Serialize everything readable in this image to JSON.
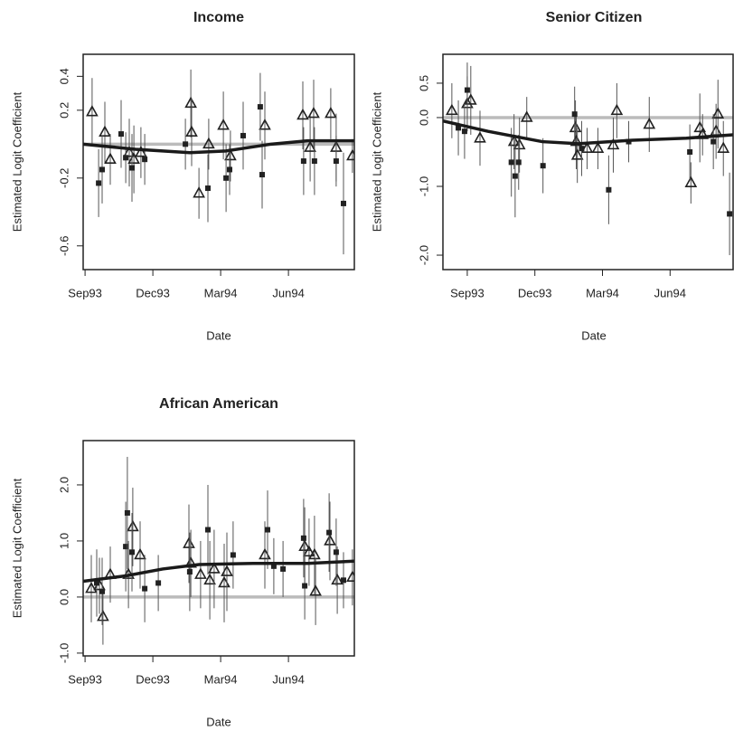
{
  "chart_data": [
    {
      "type": "scatter",
      "title": "Income",
      "xlabel": "Date",
      "ylabel": "Estimated Logit Coefficient",
      "xlim": [
        1993.66,
        1994.66
      ],
      "ylim": [
        -0.74,
        0.53
      ],
      "xticks": [
        {
          "value": 1993.667,
          "label": "Sep93"
        },
        {
          "value": 1993.917,
          "label": "Dec93"
        },
        {
          "value": 1994.167,
          "label": "Mar94"
        },
        {
          "value": 1994.417,
          "label": "Jun94"
        }
      ],
      "yticks": [
        0.4,
        0.2,
        -0.2,
        -0.6
      ],
      "reference_line": 0,
      "reference_color": "#bbbbbb",
      "series": [
        {
          "marker": "triangle",
          "color": "#222222",
          "x": [
            1993.693,
            1993.74,
            1993.76,
            1993.83,
            1993.847,
            1993.873,
            1994.057,
            1994.06,
            1994.087,
            1994.123,
            1994.177,
            1994.203,
            1994.33,
            1994.47,
            1994.497,
            1994.51,
            1994.573,
            1994.593,
            1994.653
          ],
          "values": [
            0.19,
            0.07,
            -0.09,
            -0.05,
            -0.09,
            -0.05,
            0.24,
            0.07,
            -0.29,
            0.0,
            0.11,
            -0.07,
            0.11,
            0.17,
            -0.02,
            0.18,
            0.18,
            -0.02,
            -0.07
          ],
          "errors": [
            0.2,
            0.18,
            0.15,
            0.2,
            0.2,
            0.15,
            0.2,
            0.2,
            0.15,
            0.15,
            0.2,
            0.15,
            0.2,
            0.2,
            0.2,
            0.2,
            0.15,
            0.2,
            0.1
          ]
        },
        {
          "marker": "square",
          "color": "#222222",
          "x": [
            1993.717,
            1993.73,
            1993.8,
            1993.817,
            1993.84,
            1993.887,
            1994.037,
            1994.12,
            1994.187,
            1994.2,
            1994.25,
            1994.32,
            1994.313,
            1994.473,
            1994.513,
            1994.593,
            1994.62
          ],
          "values": [
            -0.23,
            -0.15,
            0.06,
            -0.08,
            -0.14,
            -0.09,
            0.0,
            -0.26,
            -0.2,
            -0.15,
            0.05,
            -0.18,
            0.22,
            -0.1,
            -0.1,
            -0.1,
            -0.35
          ],
          "errors": [
            0.2,
            0.2,
            0.2,
            0.15,
            0.2,
            0.15,
            0.15,
            0.2,
            0.2,
            0.15,
            0.2,
            0.2,
            0.2,
            0.2,
            0.2,
            0.15,
            0.3
          ]
        },
        {
          "marker": "line",
          "color": "#1a1a1a",
          "x": [
            1993.66,
            1993.853,
            1994.053,
            1994.187,
            1994.353,
            1994.487,
            1994.66
          ],
          "values": [
            0.0,
            -0.03,
            -0.05,
            -0.04,
            0.0,
            0.02,
            0.02
          ]
        }
      ]
    },
    {
      "type": "scatter",
      "title": "Senior Citizen",
      "xlabel": "Date",
      "ylabel": "Estimated Logit Coefficient",
      "xlim": [
        1993.577,
        1994.65
      ],
      "ylim": [
        -2.21,
        0.92
      ],
      "xticks": [
        {
          "value": 1993.667,
          "label": "Sep93"
        },
        {
          "value": 1993.917,
          "label": "Dec93"
        },
        {
          "value": 1994.167,
          "label": "Mar94"
        },
        {
          "value": 1994.417,
          "label": "Jun94"
        }
      ],
      "yticks": [
        0.5,
        {
          "value": 0,
          "label": "0.0"
        },
        {
          "value": -1,
          "label": "-1.0"
        },
        {
          "value": -2,
          "label": "-2.0"
        }
      ],
      "reference_line": 0,
      "reference_color": "#bbbbbb",
      "series": [
        {
          "marker": "triangle",
          "color": "#222222",
          "x": [
            1993.61,
            1993.667,
            1993.68,
            1993.714,
            1993.84,
            1993.86,
            1993.887,
            1994.067,
            1994.07,
            1994.074,
            1994.11,
            1994.15,
            1994.207,
            1994.22,
            1994.34,
            1994.494,
            1994.527,
            1994.537,
            1994.587,
            1994.594,
            1994.614
          ],
          "values": [
            0.1,
            0.2,
            0.25,
            -0.3,
            -0.35,
            -0.4,
            0.0,
            -0.15,
            -0.35,
            -0.55,
            -0.45,
            -0.45,
            -0.4,
            0.1,
            -0.1,
            -0.95,
            -0.15,
            -0.25,
            -0.2,
            0.05,
            -0.45
          ],
          "errors": [
            0.4,
            0.4,
            0.5,
            0.4,
            0.4,
            0.4,
            0.3,
            0.4,
            0.4,
            0.4,
            0.3,
            0.3,
            0.4,
            0.4,
            0.4,
            0.3,
            0.5,
            0.3,
            0.4,
            0.5,
            0.4
          ]
        },
        {
          "marker": "square",
          "color": "#222222",
          "x": [
            1993.634,
            1993.657,
            1993.667,
            1993.83,
            1993.844,
            1993.857,
            1993.947,
            1994.064,
            1994.09,
            1994.19,
            1994.264,
            1994.49,
            1994.577,
            1994.637
          ],
          "values": [
            -0.15,
            -0.2,
            0.4,
            -0.65,
            -0.85,
            -0.65,
            -0.7,
            0.05,
            -0.45,
            -1.05,
            -0.35,
            -0.5,
            -0.35,
            -1.4
          ],
          "errors": [
            0.4,
            0.4,
            0.4,
            0.5,
            0.6,
            0.4,
            0.4,
            0.4,
            0.4,
            0.5,
            0.3,
            0.4,
            0.4,
            0.6
          ]
        },
        {
          "marker": "line",
          "color": "#1a1a1a",
          "x": [
            1993.577,
            1993.744,
            1993.944,
            1994.077,
            1994.277,
            1994.477,
            1994.65
          ],
          "values": [
            -0.05,
            -0.2,
            -0.35,
            -0.38,
            -0.33,
            -0.3,
            -0.25
          ]
        }
      ]
    },
    {
      "type": "scatter",
      "title": "African American",
      "xlabel": "Date",
      "ylabel": "Estimated Logit Coefficient",
      "xlim": [
        1993.66,
        1994.66
      ],
      "ylim": [
        -1.05,
        2.79
      ],
      "xticks": [
        {
          "value": 1993.667,
          "label": "Sep93"
        },
        {
          "value": 1993.917,
          "label": "Dec93"
        },
        {
          "value": 1994.167,
          "label": "Mar94"
        },
        {
          "value": 1994.417,
          "label": "Jun94"
        }
      ],
      "yticks": [
        {
          "value": 2,
          "label": "2.0"
        },
        {
          "value": 1,
          "label": "1.0"
        },
        {
          "value": 0,
          "label": "0.0"
        },
        {
          "value": -1,
          "label": "-1.0"
        }
      ],
      "reference_line": 0,
      "reference_color": "#bbbbbb",
      "series": [
        {
          "marker": "triangle",
          "color": "#222222",
          "x": [
            1993.69,
            1993.72,
            1993.733,
            1993.76,
            1993.827,
            1993.843,
            1993.87,
            1994.05,
            1994.057,
            1994.093,
            1994.127,
            1994.143,
            1994.18,
            1994.19,
            1994.33,
            1994.477,
            1994.493,
            1994.513,
            1994.517,
            1994.57,
            1994.597,
            1994.653
          ],
          "values": [
            0.15,
            0.2,
            -0.35,
            0.4,
            0.4,
            1.25,
            0.75,
            0.95,
            0.6,
            0.4,
            0.3,
            0.5,
            0.25,
            0.45,
            0.75,
            0.9,
            0.8,
            0.75,
            0.1,
            1.0,
            0.3,
            0.35
          ],
          "errors": [
            0.6,
            0.5,
            0.5,
            0.5,
            0.6,
            0.7,
            0.6,
            0.7,
            0.6,
            0.6,
            0.7,
            0.7,
            0.7,
            0.7,
            0.6,
            0.7,
            0.6,
            0.7,
            0.6,
            0.7,
            0.6,
            0.5
          ]
        },
        {
          "marker": "square",
          "color": "#222222",
          "x": [
            1993.71,
            1993.73,
            1993.817,
            1993.823,
            1993.84,
            1993.887,
            1993.937,
            1994.053,
            1994.12,
            1994.213,
            1994.34,
            1994.363,
            1994.397,
            1994.473,
            1994.477,
            1994.567,
            1994.593,
            1994.62
          ],
          "values": [
            0.25,
            0.1,
            0.9,
            1.5,
            0.8,
            0.15,
            0.25,
            0.45,
            1.2,
            0.75,
            1.2,
            0.55,
            0.5,
            1.05,
            0.2,
            1.15,
            0.8,
            0.3
          ],
          "errors": [
            0.6,
            0.6,
            0.8,
            1.0,
            0.7,
            0.6,
            0.5,
            0.7,
            0.8,
            0.6,
            0.7,
            0.5,
            0.5,
            0.7,
            0.6,
            0.7,
            0.6,
            0.5
          ]
        },
        {
          "marker": "line",
          "color": "#1a1a1a",
          "x": [
            1993.66,
            1993.82,
            1993.953,
            1994.087,
            1994.287,
            1994.487,
            1994.66
          ],
          "values": [
            0.28,
            0.38,
            0.5,
            0.58,
            0.6,
            0.6,
            0.64
          ]
        }
      ]
    }
  ]
}
